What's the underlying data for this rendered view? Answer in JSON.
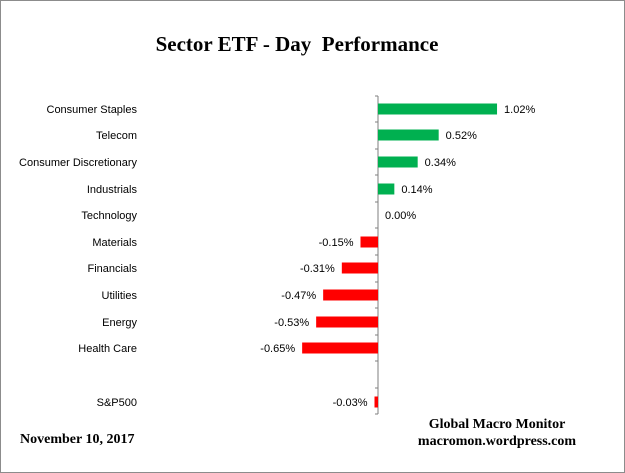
{
  "chart_data": {
    "type": "bar",
    "orientation": "horizontal",
    "title": "Sector ETF - Day  Performance",
    "categories": [
      "Consumer Staples",
      "Telecom",
      "Consumer Discretionary",
      "Industrials",
      "Technology",
      "Materials",
      "Financials",
      "Utilities",
      "Energy",
      "Health Care",
      "S&P500"
    ],
    "values": [
      1.02,
      0.52,
      0.34,
      0.14,
      0.0,
      -0.15,
      -0.31,
      -0.47,
      -0.53,
      -0.65,
      -0.03
    ],
    "value_labels": [
      "1.02%",
      "0.52%",
      "0.34%",
      "0.14%",
      "0.00%",
      "-0.15%",
      "-0.31%",
      "-0.47%",
      "-0.53%",
      "-0.65%",
      "-0.03%"
    ],
    "positive_color": "#00b050",
    "negative_color": "#ff0000",
    "grid": false,
    "legend": "none"
  },
  "footer": {
    "date": "November 10, 2017",
    "brand_line1": "Global Macro Monitor",
    "brand_line2": "macromon.wordpress.com"
  }
}
